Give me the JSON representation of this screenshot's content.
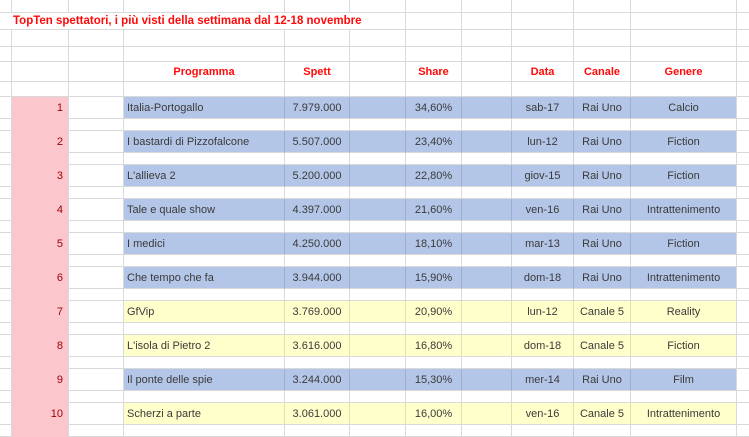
{
  "title": "TopTen spettatori, i più visti della settimana dal 12-18 novembre",
  "table": {
    "headers": {
      "programma": "Programma",
      "spett": "Spett",
      "share": "Share",
      "data": "Data",
      "canale": "Canale",
      "genere": "Genere"
    },
    "rows": [
      {
        "rank": "1",
        "programma": "Italia-Portogallo",
        "spett": "7.979.000",
        "share": "34,60%",
        "data": "sab-17",
        "canale": "Rai Uno",
        "genere": "Calcio",
        "fill": "blue"
      },
      {
        "rank": "2",
        "programma": "I bastardi di Pizzofalcone",
        "spett": "5.507.000",
        "share": "23,40%",
        "data": "lun-12",
        "canale": "Rai Uno",
        "genere": "Fiction",
        "fill": "blue"
      },
      {
        "rank": "3",
        "programma": "L'allieva 2",
        "spett": "5.200.000",
        "share": "22,80%",
        "data": "giov-15",
        "canale": "Rai Uno",
        "genere": "Fiction",
        "fill": "blue"
      },
      {
        "rank": "4",
        "programma": "Tale e quale show",
        "spett": "4.397.000",
        "share": "21,60%",
        "data": "ven-16",
        "canale": "Rai Uno",
        "genere": "Intrattenimento",
        "fill": "blue"
      },
      {
        "rank": "5",
        "programma": "I medici",
        "spett": "4.250.000",
        "share": "18,10%",
        "data": "mar-13",
        "canale": "Rai Uno",
        "genere": "Fiction",
        "fill": "blue"
      },
      {
        "rank": "6",
        "programma": "Che tempo che fa",
        "spett": "3.944.000",
        "share": "15,90%",
        "data": "dom-18",
        "canale": "Rai Uno",
        "genere": "Intrattenimento",
        "fill": "blue"
      },
      {
        "rank": "7",
        "programma": "GfVip",
        "spett": "3.769.000",
        "share": "20,90%",
        "data": "lun-12",
        "canale": "Canale 5",
        "genere": "Reality",
        "fill": "yellow"
      },
      {
        "rank": "8",
        "programma": "L'isola di Pietro 2",
        "spett": "3.616.000",
        "share": "16,80%",
        "data": "dom-18",
        "canale": "Canale 5",
        "genere": "Fiction",
        "fill": "yellow"
      },
      {
        "rank": "9",
        "programma": "Il ponte delle spie",
        "spett": "3.244.000",
        "share": "15,30%",
        "data": "mer-14",
        "canale": "Rai Uno",
        "genere": "Film",
        "fill": "blue"
      },
      {
        "rank": "10",
        "programma": "Scherzi a parte",
        "spett": "3.061.000",
        "share": "16,00%",
        "data": "ven-16",
        "canale": "Canale 5",
        "genere": "Intrattenimento",
        "fill": "yellow"
      }
    ]
  },
  "colors": {
    "row_blue": "#B4C6E7",
    "row_yellow": "#FFFFCC",
    "rank_pink": "#FBC7CD",
    "header_red": "#FF0909",
    "rank_red": "#9C0006",
    "gridline": "#D9D9D9",
    "text": "#3A3A3A"
  }
}
